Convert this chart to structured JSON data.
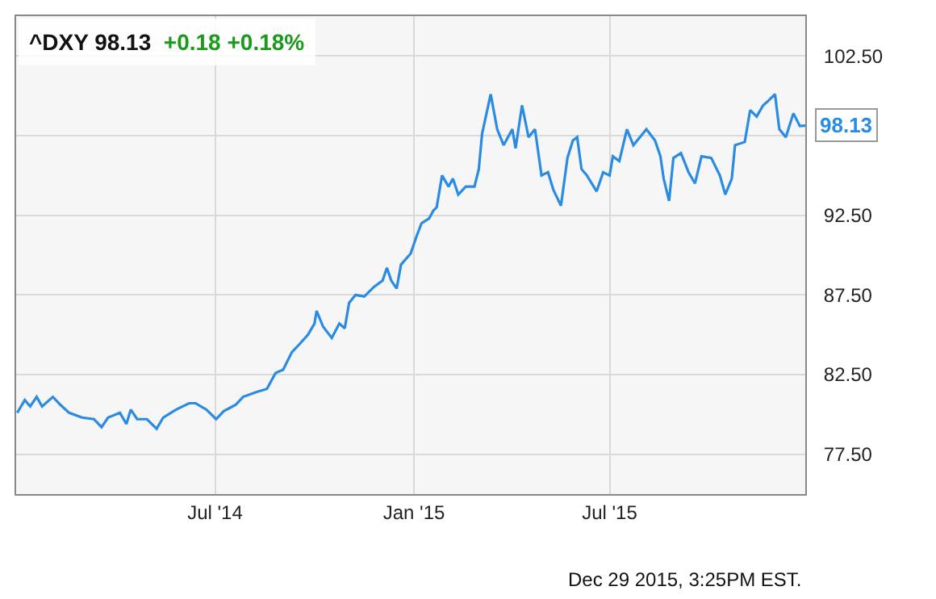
{
  "chart_data": {
    "type": "line",
    "title": "^DXY 98.13",
    "subtitle": "+0.18 +0.18%",
    "x": [
      "2013-12-30",
      "2014-01-06",
      "2014-01-11",
      "2014-01-17",
      "2014-01-22",
      "2014-02-01",
      "2014-02-08",
      "2014-02-16",
      "2014-02-28",
      "2014-03-11",
      "2014-03-18",
      "2014-03-24",
      "2014-04-04",
      "2014-04-10",
      "2014-04-14",
      "2014-04-20",
      "2014-04-29",
      "2014-05-08",
      "2014-05-14",
      "2014-05-26",
      "2014-06-07",
      "2014-06-13",
      "2014-06-23",
      "2014-07-02",
      "2014-07-09",
      "2014-07-20",
      "2014-07-27",
      "2014-08-08",
      "2014-08-18",
      "2014-08-26",
      "2014-09-02",
      "2014-09-10",
      "2014-09-17",
      "2014-09-25",
      "2014-10-01",
      "2014-10-03",
      "2014-10-09",
      "2014-10-17",
      "2014-10-24",
      "2014-10-29",
      "2014-11-02",
      "2014-11-08",
      "2014-11-16",
      "2014-11-25",
      "2014-12-03",
      "2014-12-07",
      "2014-12-11",
      "2014-12-16",
      "2014-12-20",
      "2014-12-29",
      "2015-01-03",
      "2015-01-08",
      "2015-01-15",
      "2015-01-19",
      "2015-01-22",
      "2015-01-27",
      "2015-02-02",
      "2015-02-06",
      "2015-02-11",
      "2015-02-18",
      "2015-02-26",
      "2015-03-02",
      "2015-03-05",
      "2015-03-13",
      "2015-03-19",
      "2015-03-25",
      "2015-04-02",
      "2015-04-05",
      "2015-04-11",
      "2015-04-17",
      "2015-04-23",
      "2015-04-29",
      "2015-05-05",
      "2015-05-10",
      "2015-05-17",
      "2015-05-23",
      "2015-05-28",
      "2015-06-01",
      "2015-06-05",
      "2015-06-10",
      "2015-06-19",
      "2015-06-25",
      "2015-07-01",
      "2015-07-04",
      "2015-07-10",
      "2015-07-17",
      "2015-07-23",
      "2015-07-29",
      "2015-08-04",
      "2015-08-12",
      "2015-08-17",
      "2015-08-20",
      "2015-08-25",
      "2015-08-29",
      "2015-09-05",
      "2015-09-12",
      "2015-09-18",
      "2015-09-24",
      "2015-10-03",
      "2015-10-11",
      "2015-10-16",
      "2015-10-22",
      "2015-10-25",
      "2015-11-03",
      "2015-11-08",
      "2015-11-14",
      "2015-11-20",
      "2015-11-25",
      "2015-12-01",
      "2015-12-05",
      "2015-12-11",
      "2015-12-18",
      "2015-12-24",
      "2015-12-29"
    ],
    "series": [
      {
        "color": "#2a8be3",
        "values": [
          80.1,
          80.9,
          80.5,
          81.1,
          80.5,
          81.1,
          80.6,
          80.1,
          79.8,
          79.7,
          79.2,
          79.8,
          80.1,
          79.4,
          80.3,
          79.7,
          79.7,
          79.1,
          79.8,
          80.3,
          80.7,
          80.7,
          80.3,
          79.7,
          80.2,
          80.6,
          81.1,
          81.4,
          81.6,
          82.6,
          82.8,
          83.9,
          84.4,
          85.0,
          85.7,
          86.5,
          85.5,
          84.8,
          85.7,
          85.4,
          87.0,
          87.5,
          87.4,
          88.0,
          88.4,
          89.2,
          88.4,
          87.9,
          89.4,
          90.1,
          91.1,
          92.0,
          92.3,
          92.8,
          93.0,
          95.0,
          94.3,
          94.8,
          93.8,
          94.3,
          94.3,
          95.4,
          97.6,
          100.1,
          97.9,
          96.9,
          97.9,
          96.7,
          99.4,
          97.4,
          97.9,
          95.0,
          95.2,
          94.1,
          93.1,
          96.1,
          97.2,
          97.4,
          95.4,
          95.0,
          94.0,
          95.2,
          95.0,
          96.2,
          95.9,
          97.9,
          96.9,
          97.4,
          97.9,
          97.2,
          96.2,
          94.8,
          93.4,
          96.1,
          96.4,
          95.2,
          94.5,
          96.2,
          96.1,
          95.0,
          93.8,
          94.8,
          96.9,
          97.1,
          99.1,
          98.7,
          99.4,
          99.7,
          100.1,
          97.9,
          97.4,
          98.9,
          98.1,
          98.13
        ]
      }
    ],
    "xlim": [
      "2013-12-29",
      "2015-12-29"
    ],
    "xticks": [
      {
        "value": "2014-07-01",
        "label": "Jul '14"
      },
      {
        "value": "2015-01-01",
        "label": "Jan '15"
      },
      {
        "value": "2015-07-01",
        "label": "Jul '15"
      }
    ],
    "ylim": [
      75,
      105
    ],
    "yticks": [
      {
        "value": 77.5,
        "label": "77.50"
      },
      {
        "value": 82.5,
        "label": "82.50"
      },
      {
        "value": 87.5,
        "label": "87.50"
      },
      {
        "value": 92.5,
        "label": "92.50"
      },
      {
        "value": 97.5,
        "label": null
      },
      {
        "value": 102.5,
        "label": "102.50"
      }
    ],
    "annotations": [
      {
        "text": "98.13",
        "x": "2015-12-29",
        "y": 98.13
      },
      "Dec 29 2015, 3:25PM EST."
    ],
    "grid": true,
    "legend": false,
    "marker": "none",
    "line_style": "solid"
  }
}
